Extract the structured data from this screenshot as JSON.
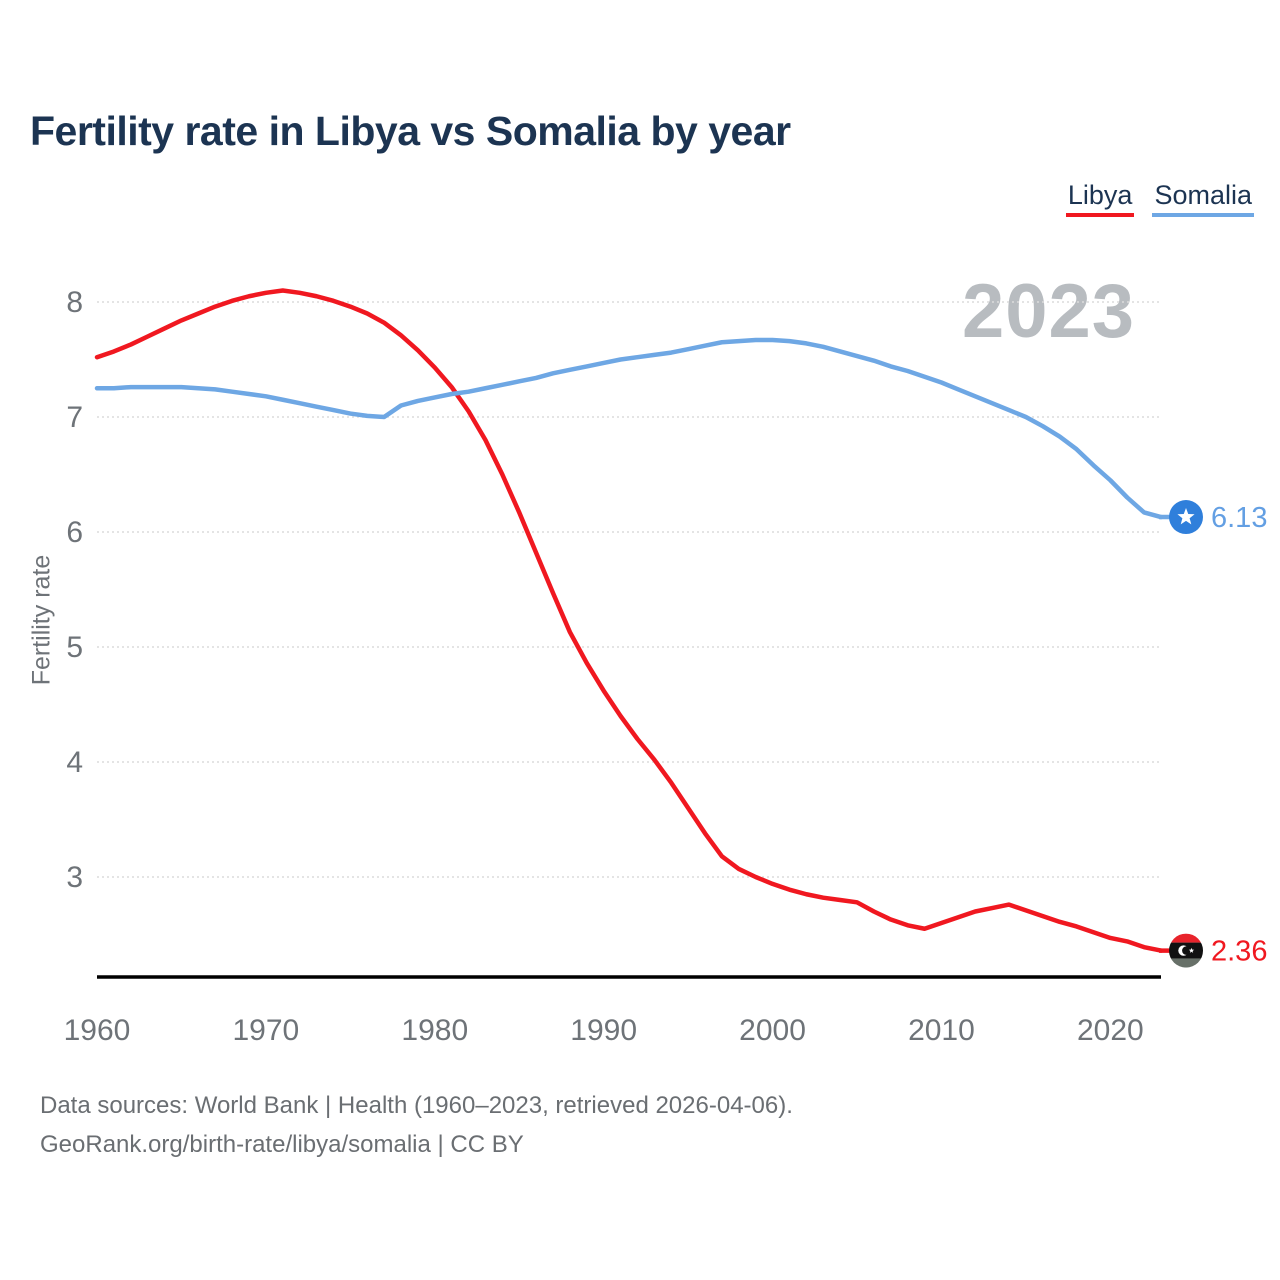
{
  "title": "Fertility rate in Libya vs Somalia by year",
  "watermark": "2023",
  "legend": [
    {
      "label": "Libya",
      "color": "#f01820"
    },
    {
      "label": "Somalia",
      "color": "#6ea7e4"
    }
  ],
  "y_axis": {
    "label": "Fertility rate",
    "ticks": [
      8,
      7,
      6,
      5,
      4,
      3
    ]
  },
  "x_axis": {
    "ticks": [
      1960,
      1970,
      1980,
      1990,
      2000,
      2010,
      2020
    ]
  },
  "end_labels": [
    {
      "series": "Somalia",
      "value": "6.13",
      "color": "#639fe3",
      "icon": "somalia-flag-icon"
    },
    {
      "series": "Libya",
      "value": "2.36",
      "color": "#f01820",
      "icon": "libya-flag-icon"
    }
  ],
  "footer": {
    "line1": "Data sources: World Bank | Health (1960–2023, retrieved 2026-04-06).",
    "line2": "GeoRank.org/birth-rate/libya/somalia | CC BY"
  },
  "colors": {
    "libya_line": "#f01820",
    "somalia_line": "#6ea7e4",
    "somalia_dot": "#2f7fdb",
    "grid": "#dcdcdc",
    "axis": "#000000",
    "tick_text": "#6e7378",
    "title_text": "#1c3452",
    "watermark_text": "#b8bcc0"
  },
  "chart_data": {
    "type": "line",
    "title": "Fertility rate in Libya vs Somalia by year",
    "xlabel": "",
    "ylabel": "Fertility rate",
    "xlim": [
      1960,
      2023
    ],
    "ylim": [
      2.13,
      8.3
    ],
    "grid": true,
    "legend_position": "top-right",
    "x": [
      1960,
      1961,
      1962,
      1963,
      1964,
      1965,
      1966,
      1967,
      1968,
      1969,
      1970,
      1971,
      1972,
      1973,
      1974,
      1975,
      1976,
      1977,
      1978,
      1979,
      1980,
      1981,
      1982,
      1983,
      1984,
      1985,
      1986,
      1987,
      1988,
      1989,
      1990,
      1991,
      1992,
      1993,
      1994,
      1995,
      1996,
      1997,
      1998,
      1999,
      2000,
      2001,
      2002,
      2003,
      2004,
      2005,
      2006,
      2007,
      2008,
      2009,
      2010,
      2011,
      2012,
      2013,
      2014,
      2015,
      2016,
      2017,
      2018,
      2019,
      2020,
      2021,
      2022,
      2023
    ],
    "series": [
      {
        "name": "Libya",
        "color": "#f01820",
        "values": [
          7.52,
          7.57,
          7.63,
          7.7,
          7.77,
          7.84,
          7.9,
          7.96,
          8.01,
          8.05,
          8.08,
          8.1,
          8.08,
          8.05,
          8.01,
          7.96,
          7.9,
          7.82,
          7.71,
          7.58,
          7.43,
          7.26,
          7.05,
          6.8,
          6.5,
          6.17,
          5.82,
          5.47,
          5.13,
          4.86,
          4.62,
          4.4,
          4.2,
          4.02,
          3.82,
          3.6,
          3.38,
          3.18,
          3.07,
          3.0,
          2.94,
          2.89,
          2.85,
          2.82,
          2.8,
          2.78,
          2.7,
          2.63,
          2.58,
          2.55,
          2.6,
          2.65,
          2.7,
          2.73,
          2.76,
          2.71,
          2.66,
          2.61,
          2.57,
          2.52,
          2.47,
          2.44,
          2.39,
          2.36
        ]
      },
      {
        "name": "Somalia",
        "color": "#6ea7e4",
        "values": [
          7.25,
          7.25,
          7.26,
          7.26,
          7.26,
          7.26,
          7.25,
          7.24,
          7.22,
          7.2,
          7.18,
          7.15,
          7.12,
          7.09,
          7.06,
          7.03,
          7.01,
          7.0,
          7.1,
          7.14,
          7.17,
          7.2,
          7.22,
          7.25,
          7.28,
          7.31,
          7.34,
          7.38,
          7.41,
          7.44,
          7.47,
          7.5,
          7.52,
          7.54,
          7.56,
          7.59,
          7.62,
          7.65,
          7.66,
          7.67,
          7.67,
          7.66,
          7.64,
          7.61,
          7.57,
          7.53,
          7.49,
          7.44,
          7.4,
          7.35,
          7.3,
          7.24,
          7.18,
          7.12,
          7.06,
          7.0,
          6.92,
          6.83,
          6.72,
          6.58,
          6.45,
          6.3,
          6.17,
          6.13
        ]
      }
    ]
  }
}
